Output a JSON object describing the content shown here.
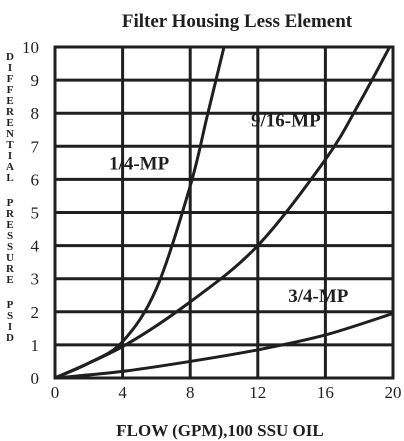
{
  "chart_data": {
    "type": "line",
    "title": "Filter Housing Less Element",
    "xlabel": "FLOW (GPM),100 SSU OIL",
    "ylabel": "DIFFERENTIAL PRESSURE PSID",
    "xlim": [
      0,
      20
    ],
    "ylim": [
      0,
      10
    ],
    "xticks": [
      "0",
      "4",
      "8",
      "12",
      "16",
      "20"
    ],
    "yticks": [
      "0",
      "1",
      "2",
      "3",
      "4",
      "5",
      "6",
      "7",
      "8",
      "9",
      "10"
    ],
    "grid": true,
    "series": [
      {
        "name": "1/4-MP",
        "x": [
          0,
          2,
          4,
          6,
          8,
          9,
          10
        ],
        "y": [
          0,
          0.45,
          1.1,
          2.7,
          5.8,
          7.9,
          10
        ]
      },
      {
        "name": "9/16-MP",
        "x": [
          0,
          4,
          8,
          12,
          16,
          18,
          19.8
        ],
        "y": [
          0,
          0.95,
          2.3,
          4.0,
          6.6,
          8.3,
          10
        ]
      },
      {
        "name": "3/4-MP",
        "x": [
          0,
          4,
          8,
          12,
          16,
          20
        ],
        "y": [
          0,
          0.2,
          0.5,
          0.85,
          1.3,
          1.95
        ]
      }
    ]
  }
}
